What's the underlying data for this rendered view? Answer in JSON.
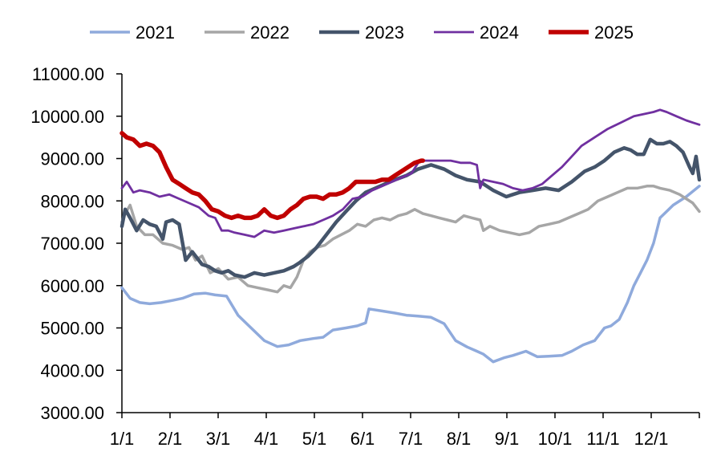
{
  "chart_data": {
    "type": "line",
    "title": "",
    "xlabel": "",
    "ylabel": "",
    "x_ticks": [
      "1/1",
      "2/1",
      "3/1",
      "4/1",
      "5/1",
      "6/1",
      "7/1",
      "8/1",
      "9/1",
      "10/1",
      "11/1",
      "12/1"
    ],
    "x_range": [
      1,
      354
    ],
    "ylim": [
      3000,
      11000
    ],
    "y_ticks": [
      "3000.00",
      "4000.00",
      "5000.00",
      "6000.00",
      "7000.00",
      "8000.00",
      "9000.00",
      "10000.00",
      "11000.00"
    ],
    "grid": false,
    "legend_position": "top",
    "series": [
      {
        "name": "2021",
        "color": "#8faadc",
        "x": [
          1,
          6,
          12,
          18,
          25,
          32,
          38,
          45,
          52,
          58,
          65,
          72,
          80,
          88,
          96,
          103,
          110,
          118,
          124,
          130,
          138,
          145,
          150,
          152,
          160,
          168,
          175,
          182,
          190,
          198,
          205,
          212,
          218,
          222,
          228,
          235,
          240,
          248,
          255,
          262,
          270,
          276,
          283,
          290,
          296,
          300,
          305,
          310,
          314,
          318,
          322,
          326,
          330,
          338,
          346,
          354
        ],
        "values": [
          5950,
          5700,
          5600,
          5570,
          5600,
          5650,
          5700,
          5800,
          5820,
          5780,
          5750,
          5300,
          5000,
          4700,
          4560,
          4600,
          4700,
          4750,
          4780,
          4950,
          5000,
          5050,
          5120,
          5450,
          5400,
          5350,
          5300,
          5280,
          5250,
          5100,
          4700,
          4550,
          4450,
          4380,
          4200,
          4300,
          4350,
          4450,
          4320,
          4330,
          4350,
          4450,
          4600,
          4700,
          5000,
          5050,
          5200,
          5600,
          6000,
          6300,
          6600,
          7000,
          7600,
          7900,
          8100,
          8350
        ]
      },
      {
        "name": "2022",
        "color": "#a6a6a6",
        "x": [
          1,
          3,
          6,
          10,
          15,
          20,
          26,
          32,
          38,
          42,
          46,
          50,
          55,
          60,
          66,
          72,
          78,
          84,
          90,
          96,
          100,
          104,
          108,
          112,
          116,
          120,
          125,
          130,
          135,
          140,
          145,
          150,
          155,
          160,
          165,
          170,
          175,
          180,
          185,
          190,
          195,
          200,
          205,
          210,
          215,
          220,
          222,
          226,
          232,
          238,
          244,
          250,
          256,
          262,
          268,
          274,
          280,
          286,
          292,
          298,
          304,
          310,
          316,
          322,
          326,
          330,
          336,
          342,
          346,
          350,
          354
        ],
        "values": [
          7500,
          7700,
          7900,
          7400,
          7200,
          7200,
          7000,
          6950,
          6850,
          6900,
          6600,
          6700,
          6300,
          6400,
          6150,
          6200,
          6000,
          5950,
          5900,
          5850,
          6000,
          5950,
          6200,
          6600,
          6800,
          6900,
          6950,
          7100,
          7200,
          7300,
          7450,
          7400,
          7550,
          7600,
          7550,
          7650,
          7700,
          7800,
          7700,
          7650,
          7600,
          7550,
          7500,
          7650,
          7600,
          7550,
          7300,
          7400,
          7300,
          7250,
          7200,
          7250,
          7400,
          7450,
          7500,
          7600,
          7700,
          7800,
          8000,
          8100,
          8200,
          8300,
          8300,
          8350,
          8350,
          8300,
          8250,
          8150,
          8050,
          7950,
          7750
        ]
      },
      {
        "name": "2023",
        "color": "#44546a",
        "x": [
          1,
          3,
          6,
          10,
          14,
          18,
          22,
          26,
          28,
          32,
          36,
          40,
          44,
          50,
          54,
          58,
          62,
          66,
          70,
          76,
          82,
          88,
          94,
          100,
          106,
          110,
          115,
          120,
          126,
          132,
          138,
          144,
          150,
          156,
          162,
          168,
          175,
          182,
          190,
          198,
          205,
          212,
          220,
          228,
          236,
          244,
          252,
          260,
          268,
          276,
          284,
          290,
          296,
          302,
          308,
          312,
          316,
          320,
          324,
          328,
          332,
          336,
          340,
          344,
          348,
          350,
          352,
          354
        ],
        "values": [
          7400,
          7800,
          7600,
          7300,
          7550,
          7450,
          7400,
          7100,
          7500,
          7550,
          7450,
          6600,
          6800,
          6500,
          6450,
          6350,
          6300,
          6350,
          6250,
          6200,
          6300,
          6250,
          6300,
          6350,
          6450,
          6550,
          6700,
          6900,
          7200,
          7500,
          7750,
          8000,
          8200,
          8300,
          8400,
          8500,
          8600,
          8750,
          8850,
          8750,
          8600,
          8500,
          8450,
          8250,
          8100,
          8200,
          8250,
          8300,
          8250,
          8450,
          8700,
          8800,
          8950,
          9150,
          9250,
          9200,
          9100,
          9100,
          9450,
          9350,
          9350,
          9400,
          9300,
          9150,
          8800,
          8650,
          9050,
          8500
        ]
      },
      {
        "name": "2024",
        "color": "#7030a0",
        "x": [
          1,
          4,
          8,
          12,
          18,
          24,
          30,
          36,
          42,
          48,
          54,
          58,
          62,
          66,
          70,
          76,
          82,
          88,
          94,
          100,
          106,
          112,
          118,
          124,
          130,
          136,
          142,
          148,
          154,
          160,
          166,
          172,
          178,
          183,
          190,
          196,
          202,
          208,
          214,
          218,
          220,
          222,
          228,
          234,
          240,
          246,
          252,
          258,
          264,
          270,
          276,
          282,
          290,
          298,
          306,
          314,
          320,
          326,
          330,
          334,
          340,
          346,
          350,
          354
        ],
        "values": [
          8300,
          8450,
          8200,
          8250,
          8200,
          8100,
          8150,
          8050,
          7950,
          7850,
          7650,
          7600,
          7300,
          7300,
          7250,
          7200,
          7150,
          7300,
          7250,
          7300,
          7350,
          7400,
          7450,
          7550,
          7650,
          7800,
          8050,
          8100,
          8250,
          8350,
          8450,
          8550,
          8650,
          8950,
          8950,
          8950,
          8950,
          8900,
          8900,
          8850,
          8300,
          8500,
          8450,
          8400,
          8300,
          8250,
          8300,
          8400,
          8600,
          8800,
          9050,
          9300,
          9500,
          9700,
          9850,
          10000,
          10050,
          10100,
          10150,
          10100,
          10000,
          9900,
          9850,
          9800
        ]
      },
      {
        "name": "2025",
        "color": "#c00000",
        "x": [
          1,
          4,
          8,
          12,
          16,
          20,
          24,
          28,
          32,
          36,
          40,
          44,
          48,
          52,
          56,
          60,
          64,
          68,
          72,
          76,
          80,
          84,
          88,
          92,
          96,
          100,
          104,
          108,
          112,
          116,
          120,
          124,
          128,
          132,
          136,
          140,
          144,
          148,
          152,
          156,
          160,
          164,
          168,
          172,
          176,
          180,
          184,
          185
        ],
        "values": [
          9600,
          9500,
          9450,
          9300,
          9350,
          9300,
          9150,
          8800,
          8500,
          8400,
          8300,
          8200,
          8150,
          8000,
          7800,
          7750,
          7650,
          7600,
          7650,
          7600,
          7600,
          7650,
          7800,
          7650,
          7600,
          7650,
          7800,
          7900,
          8050,
          8100,
          8100,
          8050,
          8150,
          8150,
          8200,
          8300,
          8450,
          8450,
          8450,
          8450,
          8500,
          8500,
          8600,
          8700,
          8800,
          8900,
          8950,
          8950
        ]
      }
    ]
  }
}
